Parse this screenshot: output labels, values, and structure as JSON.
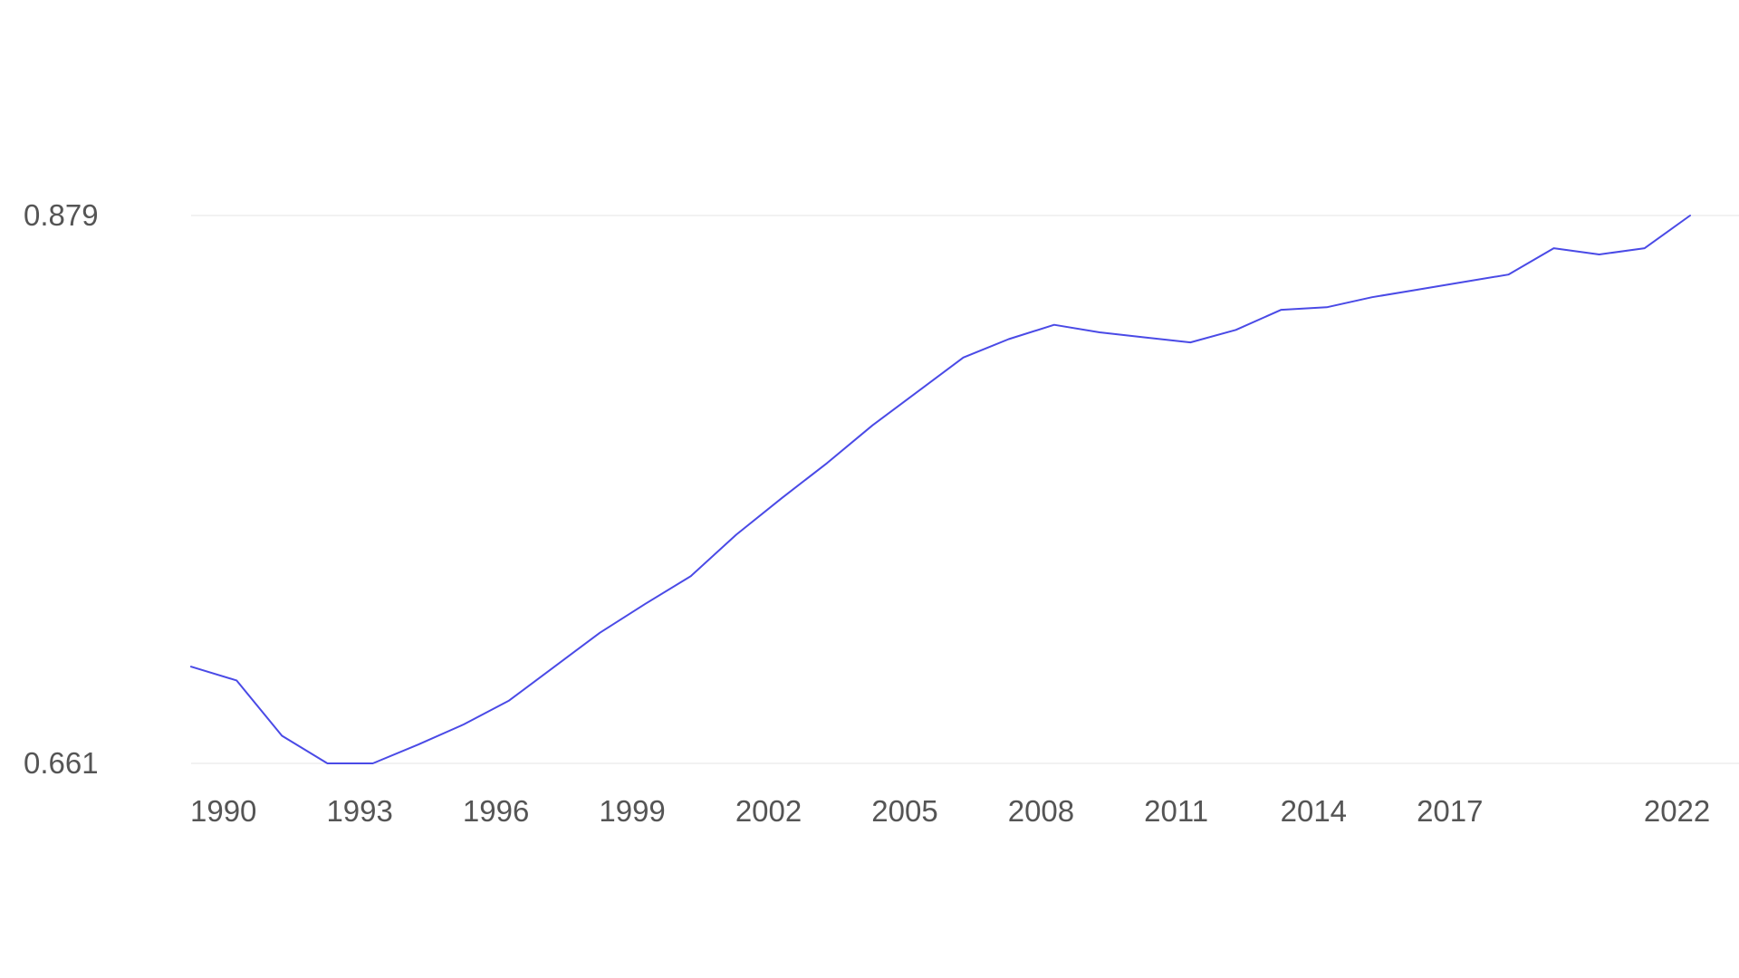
{
  "chart_data": {
    "type": "line",
    "title": "",
    "xlabel": "",
    "ylabel": "",
    "grid": true,
    "legend": "none",
    "xlim": [
      1990,
      2023
    ],
    "ylim": [
      0.661,
      0.879
    ],
    "y_ticks": [
      0.879,
      0.661
    ],
    "y_tick_labels": [
      "0.879",
      "0.661"
    ],
    "x_ticks": [
      1990,
      1993,
      1996,
      1999,
      2002,
      2005,
      2008,
      2011,
      2014,
      2017,
      2022
    ],
    "x_tick_labels": [
      "1990",
      "1993",
      "1996",
      "1999",
      "2002",
      "2005",
      "2008",
      "2011",
      "2014",
      "2017",
      "2022"
    ],
    "colors": {
      "series": "#4a4ae6",
      "grid": "#e6e6e6",
      "tick_text": "#555555"
    },
    "series": [
      {
        "x": [
          1990,
          1991,
          1992,
          1993,
          1994,
          1995,
          1996,
          1997,
          1998,
          1999,
          2000,
          2001,
          2002,
          2003,
          2004,
          2005,
          2006,
          2007,
          2008,
          2009,
          2010,
          2011,
          2012,
          2013,
          2014,
          2015,
          2016,
          2017,
          2018,
          2019,
          2020,
          2021,
          2022,
          2023
        ],
        "values": [
          0.6995,
          0.694,
          0.672,
          0.661,
          0.661,
          0.6685,
          0.6765,
          0.686,
          0.6995,
          0.713,
          0.7245,
          0.7355,
          0.752,
          0.7665,
          0.7805,
          0.7955,
          0.809,
          0.8225,
          0.8298,
          0.8355,
          0.8325,
          0.8305,
          0.8285,
          0.8335,
          0.8415,
          0.8425,
          0.8465,
          0.8495,
          0.8525,
          0.8555,
          0.866,
          0.8635,
          0.866,
          0.879
        ]
      }
    ]
  }
}
